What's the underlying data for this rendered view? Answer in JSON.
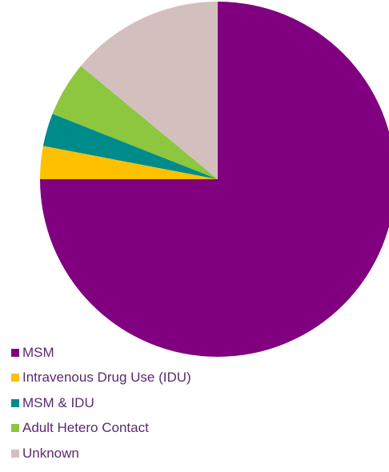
{
  "chart_data": {
    "type": "pie",
    "title": "",
    "series": [
      {
        "values": [
          75,
          3,
          3,
          5,
          14
        ]
      }
    ],
    "categories": [
      "MSM",
      "Intravenous Drug Use (IDU)",
      "MSM & IDU",
      "Adult Hetero Contact",
      "Unknown"
    ],
    "colors": [
      "#800080",
      "#FFC000",
      "#008B8B",
      "#8DC63F",
      "#D4BFBF"
    ],
    "legend_position": "bottom-left"
  }
}
